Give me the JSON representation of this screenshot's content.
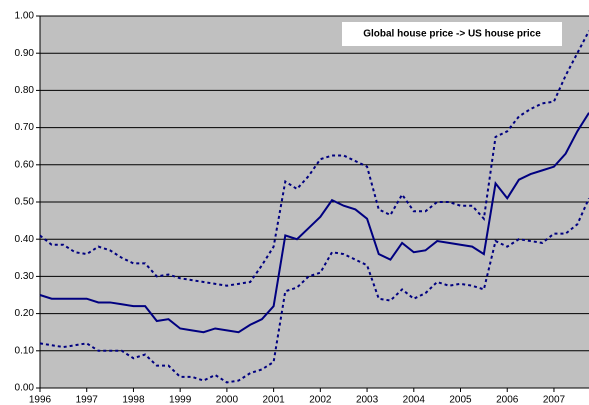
{
  "chart_data": {
    "type": "line",
    "annotation": "Global house price -> US house price",
    "categories": [
      "1996",
      null,
      null,
      null,
      "1997",
      null,
      null,
      null,
      "1998",
      null,
      null,
      null,
      "1999",
      null,
      null,
      null,
      "2000",
      null,
      null,
      null,
      "2001",
      null,
      null,
      null,
      "2002",
      null,
      null,
      null,
      "2003",
      null,
      null,
      null,
      "2004",
      null,
      null,
      null,
      "2005",
      null,
      null,
      null,
      "2006",
      null,
      null,
      null,
      "2007",
      null,
      null,
      null
    ],
    "series": [
      {
        "color": "#000080",
        "style": "solid",
        "values": [
          0.25,
          0.24,
          0.24,
          0.24,
          0.24,
          0.23,
          0.23,
          0.225,
          0.22,
          0.22,
          0.18,
          0.185,
          0.16,
          0.155,
          0.15,
          0.16,
          0.155,
          0.15,
          0.17,
          0.185,
          0.22,
          0.41,
          0.4,
          0.43,
          0.46,
          0.505,
          0.49,
          0.48,
          0.455,
          0.36,
          0.345,
          0.39,
          0.365,
          0.37,
          0.395,
          0.39,
          0.385,
          0.38,
          0.36,
          0.55,
          0.51,
          0.56,
          0.575,
          0.585,
          0.595,
          0.63,
          0.69,
          0.74
        ]
      },
      {
        "color": "#000080",
        "style": "dotted",
        "values": [
          0.41,
          0.385,
          0.385,
          0.365,
          0.36,
          0.38,
          0.37,
          0.35,
          0.335,
          0.335,
          0.3,
          0.305,
          0.295,
          0.29,
          0.285,
          0.28,
          0.275,
          0.28,
          0.285,
          0.33,
          0.38,
          0.555,
          0.535,
          0.57,
          0.615,
          0.625,
          0.625,
          0.61,
          0.595,
          0.48,
          0.465,
          0.52,
          0.475,
          0.475,
          0.5,
          0.5,
          0.49,
          0.49,
          0.455,
          0.675,
          0.69,
          0.73,
          0.75,
          0.765,
          0.77,
          0.84,
          0.9,
          0.96
        ]
      },
      {
        "color": "#000080",
        "style": "dotted",
        "values": [
          0.12,
          0.115,
          0.11,
          0.115,
          0.12,
          0.1,
          0.1,
          0.1,
          0.08,
          0.09,
          0.06,
          0.06,
          0.03,
          0.03,
          0.02,
          0.035,
          0.015,
          0.02,
          0.04,
          0.05,
          0.07,
          0.26,
          0.27,
          0.3,
          0.31,
          0.365,
          0.36,
          0.345,
          0.33,
          0.24,
          0.235,
          0.265,
          0.24,
          0.255,
          0.285,
          0.275,
          0.28,
          0.275,
          0.265,
          0.395,
          0.38,
          0.4,
          0.395,
          0.39,
          0.415,
          0.415,
          0.44,
          0.51
        ]
      }
    ],
    "ylim": [
      0,
      1
    ],
    "yticks": [
      {
        "value": 0,
        "label": "0.00"
      },
      {
        "value": 0.1,
        "label": "0.10"
      },
      {
        "value": 0.2,
        "label": "0.20"
      },
      {
        "value": 0.3,
        "label": "0.30"
      },
      {
        "value": 0.4,
        "label": "0.40"
      },
      {
        "value": 0.5,
        "label": "0.50"
      },
      {
        "value": 0.6,
        "label": "0.60"
      },
      {
        "value": 0.7,
        "label": "0.70"
      },
      {
        "value": 0.8,
        "label": "0.80"
      },
      {
        "value": 0.9,
        "label": "0.90"
      },
      {
        "value": 1,
        "label": "1.00"
      }
    ],
    "grid": true,
    "plot_background": "#c0c0c0"
  }
}
